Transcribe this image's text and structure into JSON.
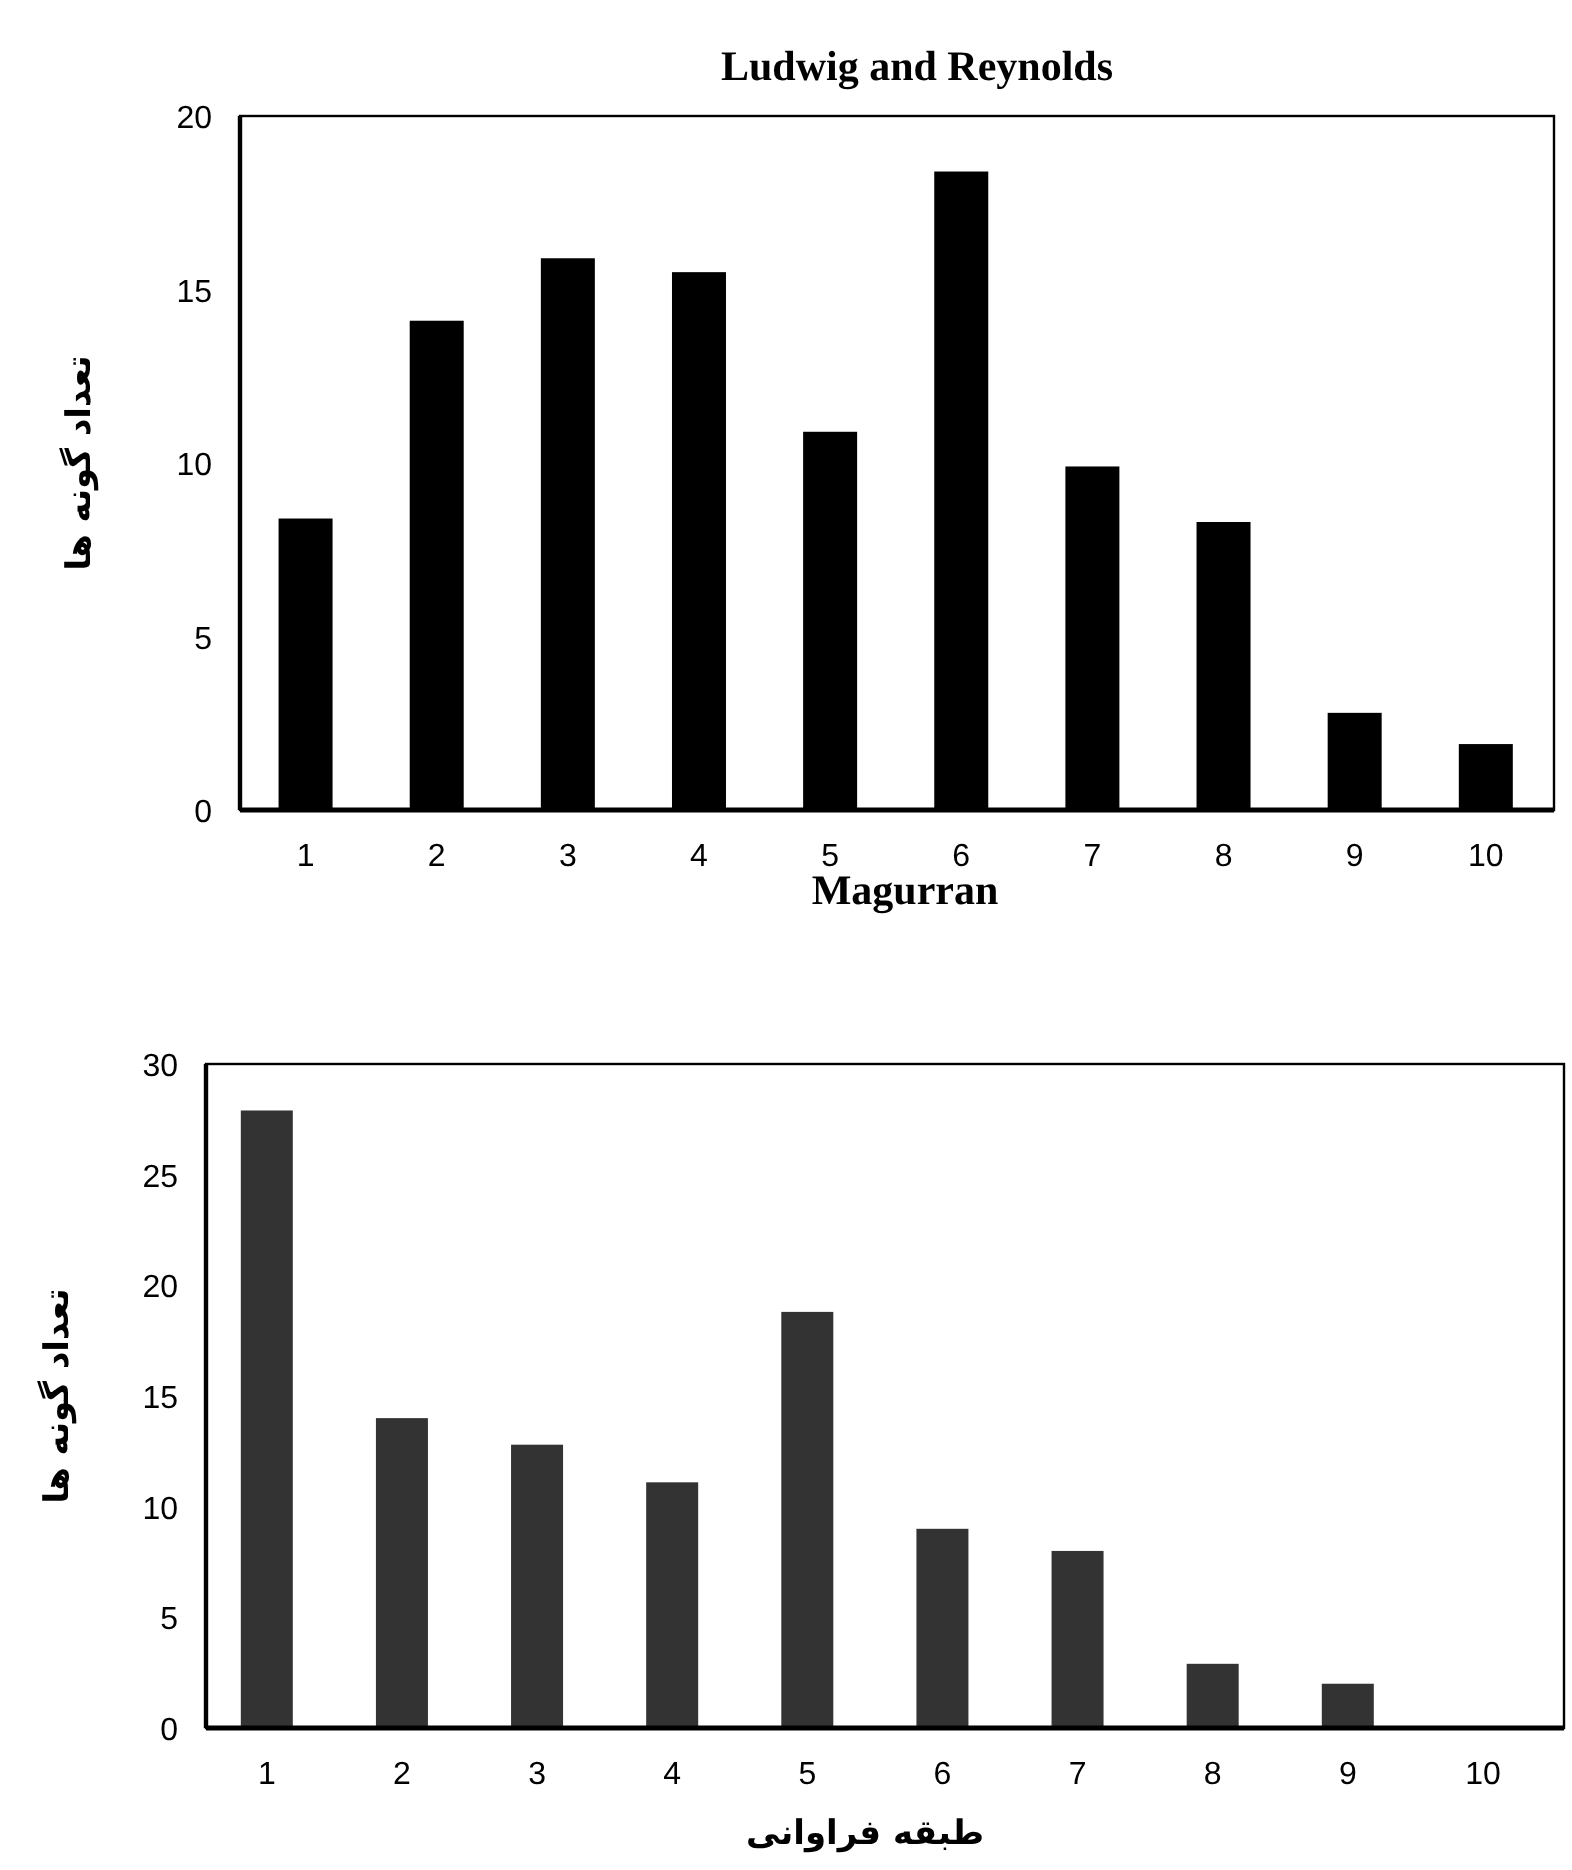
{
  "chart_data": [
    {
      "type": "bar",
      "title": "Ludwig and Reynolds",
      "ylabel": "تعداد گونه ها",
      "categories": [
        "1",
        "2",
        "3",
        "4",
        "5",
        "6",
        "7",
        "8",
        "9",
        "10"
      ],
      "values": [
        8.4,
        14.1,
        15.9,
        15.5,
        10.9,
        18.4,
        9.9,
        8.3,
        2.8,
        1.9
      ],
      "color": "#000000",
      "ylim": [
        0,
        20
      ],
      "yticks": [
        0,
        5,
        10,
        15,
        20
      ]
    },
    {
      "type": "bar",
      "title": "Magurran",
      "xlabel": "طبقه فراوانی",
      "ylabel": "تعداد گونه ها",
      "categories": [
        "1",
        "2",
        "3",
        "4",
        "5",
        "6",
        "7",
        "8",
        "9",
        "10"
      ],
      "values": [
        27.9,
        14.0,
        12.8,
        11.1,
        18.8,
        9.0,
        8.0,
        2.9,
        2.0,
        0
      ],
      "color": "#333333",
      "ylim": [
        0,
        30
      ],
      "yticks": [
        0,
        5,
        10,
        15,
        20,
        25,
        30
      ]
    }
  ]
}
